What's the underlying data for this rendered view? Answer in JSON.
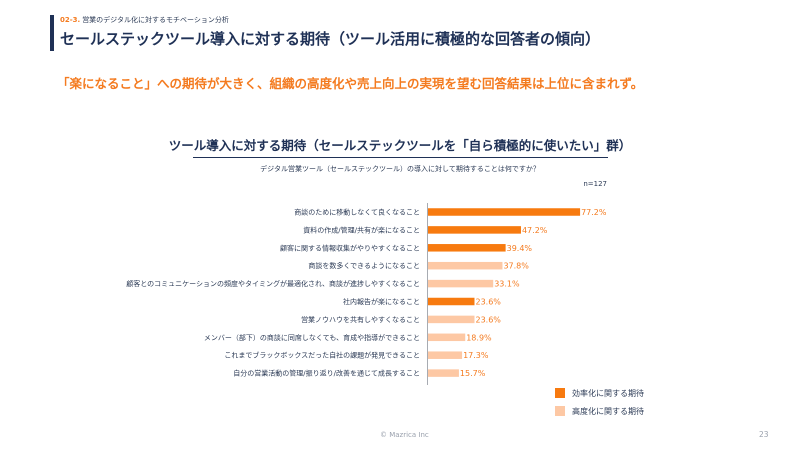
{
  "header": {
    "section_number": "02-3.",
    "section_label": "営業のデジタル化に対するモチベーション分析",
    "title": "セールステックツール導入に対する期待（ツール活用に積極的な回答者の傾向）"
  },
  "lead_text": "「楽になること」への期待が大きく、組織の高度化や売上向上の実現を望む回答結果は上位に含まれず。",
  "chart_data": {
    "type": "bar",
    "orientation": "horizontal",
    "title": "ツール導入に対する期待（セールステックツールを「自ら積極的に使いたい」群）",
    "subtitle": "デジタル営業ツール（セールステックツール）の導入に対して期待することは何ですか？",
    "sample_size": "n=127",
    "categories": [
      "商談のために移動しなくて良くなること",
      "資料の作成/管理/共有が楽になること",
      "顧客に関する情報収集がやりやすくなること",
      "商談を数多くできるようになること",
      "顧客とのコミュニケーションの頻度やタイミングが最適化され、商談が進捗しやすくなること",
      "社内報告が楽になること",
      "営業ノウハウを共有しやすくなること",
      "メンバー（部下）の商談に同席しなくても、育成や指導ができること",
      "これまでブラックボックスだった自社の課題が発見できること",
      "自分の営業活動の管理/振り返り/改善を通じて成長すること"
    ],
    "values": [
      77.2,
      47.2,
      39.4,
      37.8,
      33.1,
      23.6,
      23.6,
      18.9,
      17.3,
      15.7
    ],
    "value_labels": [
      "77.2%",
      "47.2%",
      "39.4%",
      "37.8%",
      "33.1%",
      "23.6%",
      "23.6%",
      "18.9%",
      "17.3%",
      "15.7%"
    ],
    "groups": [
      "efficiency",
      "efficiency",
      "efficiency",
      "sophistication",
      "sophistication",
      "efficiency",
      "sophistication",
      "sophistication",
      "sophistication",
      "sophistication"
    ],
    "unit": "%",
    "xlim": [
      0,
      100
    ],
    "legend": [
      {
        "key": "efficiency",
        "label": "効率化に関する期待",
        "color": "#f77a0f"
      },
      {
        "key": "sophistication",
        "label": "高度化に関する期待",
        "color": "#fdc8a4"
      }
    ],
    "legend_position": "bottom-right",
    "label_color": "#f47b20"
  },
  "footer": {
    "copyright": "© Mazrica Inc",
    "page_number": "23"
  }
}
